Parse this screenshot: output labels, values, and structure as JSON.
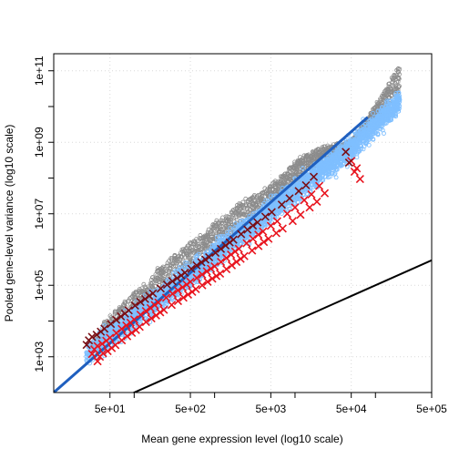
{
  "chart_data": {
    "type": "scatter",
    "title": "",
    "xlabel": "Mean gene expression level (log10 scale)",
    "ylabel": "Pooled gene-level variance (log10 scale)",
    "xscale": "log10",
    "yscale": "log10",
    "xlim": [
      10,
      500000
    ],
    "ylim": [
      100,
      300000000000
    ],
    "grid": true,
    "legend": "none",
    "x_ticks": [
      {
        "value": 50,
        "label": "5e+01"
      },
      {
        "value": 500,
        "label": "5e+02"
      },
      {
        "value": 5000,
        "label": "5e+03"
      },
      {
        "value": 50000,
        "label": "5e+04"
      },
      {
        "value": 500000,
        "label": "5e+05"
      }
    ],
    "y_ticks": [
      {
        "value": 1000,
        "label": "1e+03"
      },
      {
        "value": 100000,
        "label": "1e+05"
      },
      {
        "value": 10000000,
        "label": "1e+07"
      },
      {
        "value": 1000000000,
        "label": "1e+09"
      },
      {
        "value": 100000000000,
        "label": "1e+11"
      }
    ],
    "colors": {
      "gene_points": "#7fbfff",
      "high_variance_points": "#8c8c8c",
      "binned_variance": "#e8141e",
      "binned_variance_dark": "#7a0f15",
      "fitted_line": "#1f5fbf",
      "poisson_line": "#000000"
    },
    "series": [
      {
        "kind": "scatter-cloud",
        "color": "#8c8c8c",
        "points": [
          [
            30,
            2400
          ],
          [
            40,
            8000
          ],
          [
            60,
            20000
          ],
          [
            100,
            60000
          ],
          [
            150,
            120000
          ],
          [
            200,
            300000
          ],
          [
            300,
            600000
          ],
          [
            500,
            1500000
          ],
          [
            800,
            3000000
          ],
          [
            1000,
            6000000
          ],
          [
            1500,
            10000000
          ],
          [
            2000,
            20000000
          ],
          [
            3000,
            30000000
          ],
          [
            5000,
            60000000
          ],
          [
            8000,
            150000000
          ],
          [
            10000,
            300000000
          ],
          [
            20000,
            700000000
          ],
          [
            50000,
            1000000000
          ],
          [
            100000,
            10000000000
          ],
          [
            200000,
            150000000000
          ]
        ]
      },
      {
        "kind": "scatter-cloud",
        "color": "#7fbfff",
        "points": [
          [
            25,
            1200
          ],
          [
            40,
            2500
          ],
          [
            60,
            5000
          ],
          [
            100,
            12000
          ],
          [
            150,
            25000
          ],
          [
            200,
            40000
          ],
          [
            300,
            80000
          ],
          [
            500,
            200000
          ],
          [
            800,
            450000
          ],
          [
            1000,
            700000
          ],
          [
            1500,
            1500000
          ],
          [
            2000,
            2500000
          ],
          [
            3000,
            5000000
          ],
          [
            5000,
            12000000
          ],
          [
            8000,
            30000000
          ],
          [
            10000,
            40000000
          ],
          [
            20000,
            150000000
          ],
          [
            50000,
            700000000
          ],
          [
            100000,
            3000000000
          ],
          [
            200000,
            15000000000
          ]
        ]
      },
      {
        "kind": "cross-markers",
        "color": "#e8141e",
        "points": [
          [
            30,
            1200
          ],
          [
            32,
            1600
          ],
          [
            35,
            2000
          ],
          [
            40,
            2300
          ],
          [
            45,
            2800
          ],
          [
            50,
            3400
          ],
          [
            60,
            4600
          ],
          [
            70,
            6000
          ],
          [
            80,
            7500
          ],
          [
            90,
            9000
          ],
          [
            100,
            11000
          ],
          [
            120,
            15000
          ],
          [
            140,
            19000
          ],
          [
            160,
            23000
          ],
          [
            180,
            28000
          ],
          [
            200,
            33000
          ],
          [
            250,
            45000
          ],
          [
            300,
            58000
          ],
          [
            350,
            72000
          ],
          [
            400,
            88000
          ],
          [
            450,
            105000
          ],
          [
            500,
            125000
          ],
          [
            600,
            160000
          ],
          [
            700,
            200000
          ],
          [
            800,
            245000
          ],
          [
            900,
            290000
          ],
          [
            1000,
            340000
          ],
          [
            1200,
            450000
          ],
          [
            1400,
            580000
          ],
          [
            1600,
            720000
          ],
          [
            1800,
            880000
          ],
          [
            2000,
            1050000
          ],
          [
            2500,
            1500000
          ],
          [
            3000,
            2000000
          ],
          [
            3500,
            2600000
          ],
          [
            4000,
            3200000
          ],
          [
            5000,
            4600000
          ],
          [
            6000,
            6200000
          ],
          [
            8000,
            10000000
          ],
          [
            10000,
            15000000
          ],
          [
            13000,
            24000000
          ],
          [
            16000,
            35000000
          ],
          [
            20000,
            60000000
          ],
          [
            50000,
            300000000
          ],
          [
            55000,
            150000000
          ]
        ]
      }
    ],
    "lines": [
      {
        "name": "",
        "color": "#1f5fbf",
        "from": [
          10,
          100
        ],
        "to": [
          80000,
          5000000000
        ]
      },
      {
        "name": "",
        "color": "#000000",
        "from": [
          10,
          10
        ],
        "to": [
          500000,
          500000
        ]
      }
    ]
  }
}
